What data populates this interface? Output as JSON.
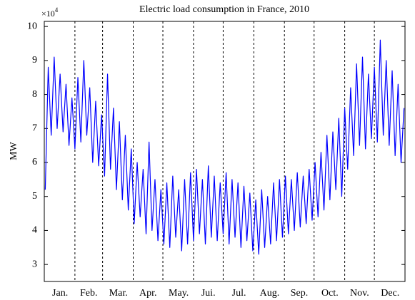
{
  "chart_data": {
    "type": "line",
    "title": "Electric load consumption in France, 2010",
    "ylabel": "MW",
    "y_multiplier": {
      "base": "×10",
      "exponent": "4"
    },
    "x": [
      1,
      4,
      7,
      10,
      13,
      16,
      19,
      22,
      25,
      28,
      31,
      34,
      37,
      40,
      43,
      46,
      49,
      52,
      55,
      58,
      61,
      64,
      67,
      70,
      73,
      76,
      79,
      82,
      85,
      88,
      91,
      94,
      97,
      100,
      103,
      106,
      109,
      112,
      115,
      118,
      121,
      124,
      127,
      130,
      133,
      136,
      139,
      142,
      145,
      148,
      151,
      154,
      157,
      160,
      163,
      166,
      169,
      172,
      175,
      178,
      181,
      184,
      187,
      190,
      193,
      196,
      199,
      202,
      205,
      208,
      211,
      214,
      217,
      220,
      223,
      226,
      229,
      232,
      235,
      238,
      241,
      244,
      247,
      250,
      253,
      256,
      259,
      262,
      265,
      268,
      271,
      274,
      277,
      280,
      283,
      286,
      289,
      292,
      295,
      298,
      301,
      304,
      307,
      310,
      313,
      316,
      319,
      322,
      325,
      328,
      331,
      334,
      337,
      340,
      343,
      346,
      349,
      352,
      355,
      358,
      361,
      364
    ],
    "series": [
      {
        "name": "Load",
        "color": "#0000ff",
        "values": [
          5.2,
          8.8,
          6.8,
          9.1,
          7.0,
          8.6,
          6.9,
          8.3,
          6.5,
          7.9,
          6.4,
          8.5,
          6.6,
          9.0,
          6.8,
          8.2,
          6.0,
          7.8,
          5.9,
          7.4,
          5.6,
          8.6,
          5.8,
          7.6,
          5.2,
          7.2,
          4.9,
          6.8,
          4.6,
          6.4,
          4.2,
          6.0,
          4.4,
          5.8,
          3.9,
          6.6,
          4.0,
          5.5,
          3.7,
          5.2,
          3.6,
          5.4,
          3.5,
          5.6,
          3.8,
          5.2,
          3.4,
          5.5,
          3.6,
          5.7,
          3.7,
          5.8,
          3.9,
          5.5,
          3.6,
          5.9,
          3.8,
          5.6,
          3.7,
          5.4,
          3.9,
          5.7,
          3.6,
          5.5,
          3.8,
          5.4,
          3.5,
          5.3,
          3.7,
          5.1,
          3.4,
          4.9,
          3.3,
          5.2,
          3.5,
          5.0,
          3.6,
          5.4,
          3.7,
          5.5,
          3.8,
          5.6,
          3.9,
          5.5,
          4.0,
          5.7,
          4.1,
          5.6,
          4.2,
          5.8,
          4.3,
          6.0,
          4.4,
          6.3,
          4.6,
          6.8,
          4.9,
          6.9,
          5.2,
          7.3,
          5.0,
          7.6,
          5.8,
          8.2,
          6.2,
          8.9,
          6.5,
          9.1,
          6.4,
          8.6,
          6.7,
          8.8,
          6.6,
          9.6,
          6.8,
          9.0,
          6.5,
          8.7,
          6.2,
          8.3,
          6.0,
          7.6
        ]
      }
    ],
    "xlim": [
      0,
      365
    ],
    "xticks": [
      {
        "value": 16,
        "label": "Jan."
      },
      {
        "value": 45,
        "label": "Feb."
      },
      {
        "value": 75,
        "label": "Mar."
      },
      {
        "value": 105,
        "label": "Apr."
      },
      {
        "value": 136,
        "label": "May."
      },
      {
        "value": 166,
        "label": "Jui."
      },
      {
        "value": 197,
        "label": "Jul."
      },
      {
        "value": 228,
        "label": "Aug."
      },
      {
        "value": 258,
        "label": "Sep."
      },
      {
        "value": 289,
        "label": "Oct."
      },
      {
        "value": 319,
        "label": "Nov."
      },
      {
        "value": 350,
        "label": "Dec."
      }
    ],
    "xgrid": [
      31,
      59,
      90,
      120,
      151,
      181,
      212,
      243,
      273,
      304,
      334
    ],
    "ylim": [
      2.5,
      10.15
    ],
    "yticks": [
      3,
      4,
      5,
      6,
      7,
      8,
      9,
      10
    ]
  }
}
